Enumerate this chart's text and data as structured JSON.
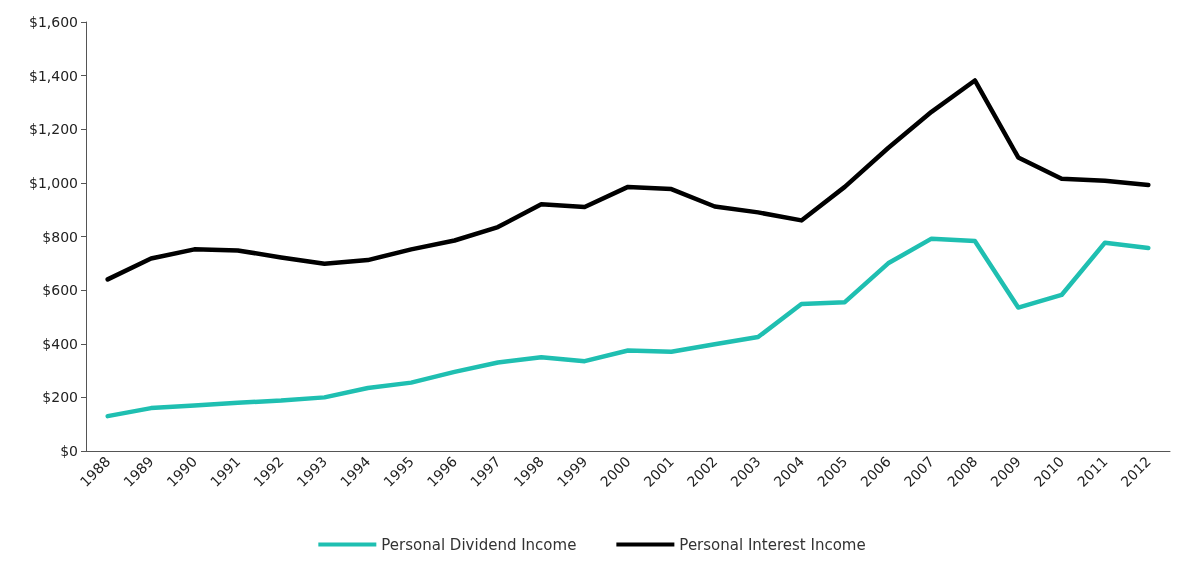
{
  "chart_data": {
    "type": "line",
    "categories": [
      "1988",
      "1989",
      "1990",
      "1991",
      "1992",
      "1993",
      "1994",
      "1995",
      "1996",
      "1997",
      "1998",
      "1999",
      "2000",
      "2001",
      "2002",
      "2003",
      "2004",
      "2005",
      "2006",
      "2007",
      "2008",
      "2009",
      "2010",
      "2011",
      "2012"
    ],
    "series": [
      {
        "name": "Personal Dividend Income",
        "color": "#1fbfb1",
        "values": [
          130,
          160,
          170,
          180,
          188,
          200,
          235,
          255,
          295,
          330,
          350,
          335,
          375,
          370,
          398,
          425,
          548,
          555,
          700,
          792,
          783,
          535,
          582,
          777,
          757
        ]
      },
      {
        "name": "Personal Interest Income",
        "color": "#000000",
        "values": [
          640,
          718,
          752,
          748,
          722,
          698,
          712,
          752,
          785,
          835,
          920,
          910,
          985,
          977,
          912,
          890,
          860,
          985,
          1130,
          1265,
          1382,
          1095,
          1015,
          1008,
          992
        ]
      }
    ],
    "ylim": [
      0,
      1600
    ],
    "yticks": [
      {
        "value": 0,
        "label": "$0"
      },
      {
        "value": 200,
        "label": "$200"
      },
      {
        "value": 400,
        "label": "$400"
      },
      {
        "value": 600,
        "label": "$600"
      },
      {
        "value": 800,
        "label": "$800"
      },
      {
        "value": 1000,
        "label": "$1,000"
      },
      {
        "value": 1200,
        "label": "$1,200"
      },
      {
        "value": 1400,
        "label": "$1,400"
      },
      {
        "value": 1600,
        "label": "$1,600"
      }
    ],
    "grid": false,
    "legend": "bottom",
    "marker": "none",
    "line_style": "solid"
  }
}
